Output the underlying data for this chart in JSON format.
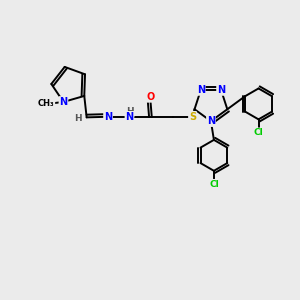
{
  "background_color": "#ebebeb",
  "atom_colors": {
    "N": "#0000ff",
    "O": "#ff0000",
    "S": "#ccaa00",
    "Cl": "#00cc00",
    "C": "#000000",
    "H": "#555555"
  },
  "bond_color": "#000000",
  "bond_width": 1.4,
  "figsize": [
    3.0,
    3.0
  ],
  "dpi": 100,
  "xlim": [
    0,
    10
  ],
  "ylim": [
    0,
    10
  ]
}
